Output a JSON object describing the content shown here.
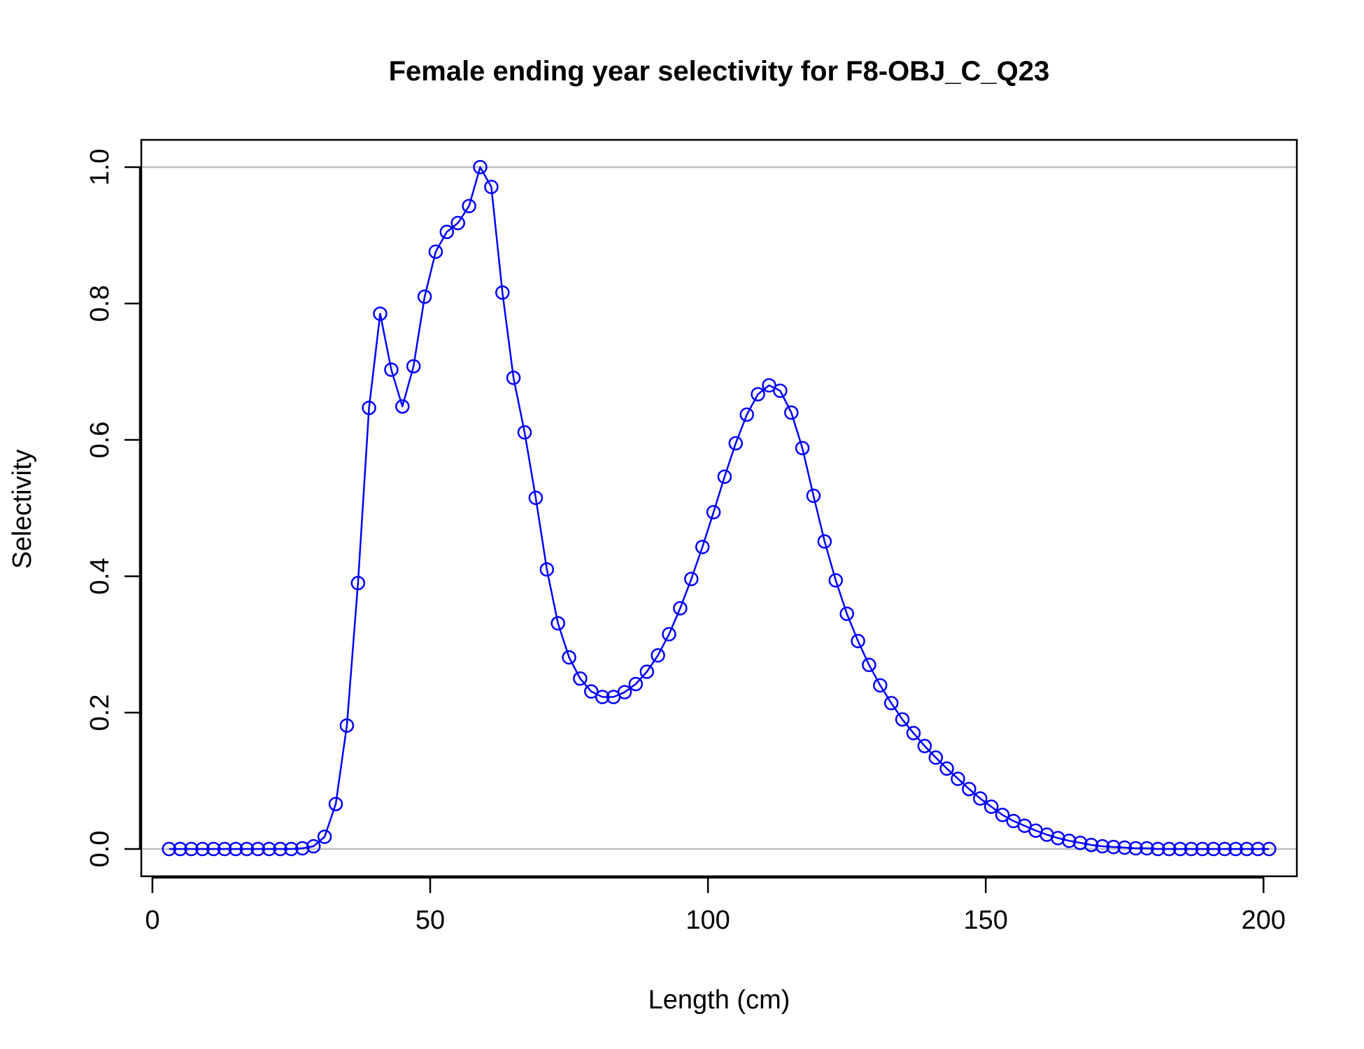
{
  "chart_data": {
    "type": "line",
    "title": "Female ending year selectivity for F8-OBJ_C_Q23",
    "xlabel": "Length (cm)",
    "ylabel": "Selectivity",
    "xlim": [
      -2,
      206
    ],
    "ylim": [
      -0.04,
      1.04
    ],
    "xticks": [
      0,
      50,
      100,
      150,
      200
    ],
    "yticks": [
      0.0,
      0.2,
      0.4,
      0.6,
      0.8,
      1.0
    ],
    "ytick_labels": [
      "0.0",
      "0.2",
      "0.4",
      "0.6",
      "0.8",
      "1.0"
    ],
    "reference_lines": [
      0,
      1
    ],
    "reference_line_color": "#bebebe",
    "series_color": "#0000ff",
    "grid": false,
    "legend": "none",
    "series": [
      {
        "x": [
          3,
          5,
          7,
          9,
          11,
          13,
          15,
          17,
          19,
          21,
          23,
          25,
          27,
          29,
          31,
          33,
          35,
          37,
          39,
          41,
          43,
          45,
          47,
          49,
          51,
          53,
          55,
          57,
          59,
          61,
          63,
          65,
          67,
          69,
          71,
          73,
          75,
          77,
          79,
          81,
          83,
          85,
          87,
          89,
          91,
          93,
          95,
          97,
          99,
          101,
          103,
          105,
          107,
          109,
          111,
          113,
          115,
          117,
          119,
          121,
          123,
          125,
          127,
          129,
          131,
          133,
          135,
          137,
          139,
          141,
          143,
          145,
          147,
          149,
          151,
          153,
          155,
          157,
          159,
          161,
          163,
          165,
          167,
          169,
          171,
          173,
          175,
          177,
          179,
          181,
          183,
          185,
          187,
          189,
          191,
          193,
          195,
          197,
          199,
          201
        ],
        "y": [
          0,
          0,
          0,
          0,
          0,
          0,
          0,
          0,
          0,
          0,
          0,
          0,
          0.001,
          0.004,
          0.018,
          0.066,
          0.181,
          0.39,
          0.647,
          0.785,
          0.703,
          0.649,
          0.708,
          0.81,
          0.876,
          0.905,
          0.918,
          0.943,
          1.0,
          0.971,
          0.816,
          0.691,
          0.611,
          0.515,
          0.41,
          0.331,
          0.281,
          0.25,
          0.231,
          0.223,
          0.223,
          0.23,
          0.242,
          0.26,
          0.284,
          0.315,
          0.353,
          0.396,
          0.443,
          0.494,
          0.546,
          0.595,
          0.637,
          0.667,
          0.68,
          0.672,
          0.64,
          0.588,
          0.518,
          0.451,
          0.394,
          0.345,
          0.305,
          0.27,
          0.24,
          0.214,
          0.19,
          0.17,
          0.151,
          0.134,
          0.118,
          0.103,
          0.088,
          0.074,
          0.062,
          0.05,
          0.041,
          0.034,
          0.027,
          0.021,
          0.016,
          0.012,
          0.009,
          0.006,
          0.004,
          0.003,
          0.002,
          0.001,
          0.001,
          0,
          0,
          0,
          0,
          0,
          0,
          0,
          0,
          0,
          0,
          0
        ]
      }
    ]
  }
}
